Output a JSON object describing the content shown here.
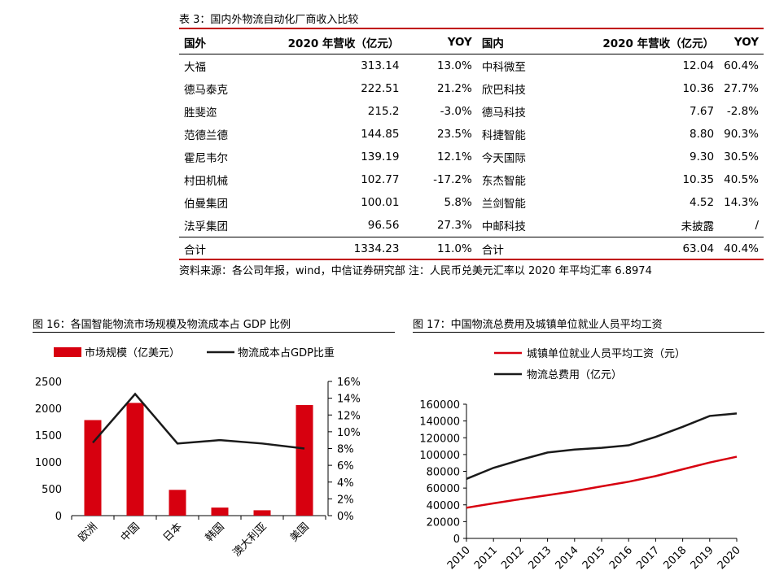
{
  "table3": {
    "caption": "表 3：国内外物流自动化厂商收入比较",
    "header": [
      "国外",
      "2020 年营收（亿元）",
      "YOY",
      "国内",
      "2020 年营收（亿元）",
      "YOY"
    ],
    "rows": [
      [
        "大福",
        "313.14",
        "13.0%",
        "中科微至",
        "12.04",
        "60.4%"
      ],
      [
        "德马泰克",
        "222.51",
        "21.2%",
        "欣巴科技",
        "10.36",
        "27.7%"
      ],
      [
        "胜斐迩",
        "215.2",
        "-3.0%",
        "德马科技",
        "7.67",
        "-2.8%"
      ],
      [
        "范德兰德",
        "144.85",
        "23.5%",
        "科捷智能",
        "8.80",
        "90.3%"
      ],
      [
        "霍尼韦尔",
        "139.19",
        "12.1%",
        "今天国际",
        "9.30",
        "30.5%"
      ],
      [
        "村田机械",
        "102.77",
        "-17.2%",
        "东杰智能",
        "10.35",
        "40.5%"
      ],
      [
        "伯曼集团",
        "100.01",
        "5.8%",
        "兰剑智能",
        "4.52",
        "14.3%"
      ],
      [
        "法孚集团",
        "96.56",
        "27.3%",
        "中邮科技",
        "未披露",
        "/"
      ]
    ],
    "total": [
      "合计",
      "1334.23",
      "11.0%",
      "合计",
      "63.04",
      "40.4%"
    ],
    "source": "资料来源：各公司年报，wind，中信证券研究部 注：人民币兑美元汇率以 2020 年平均汇率 6.8974"
  },
  "fig16": {
    "caption": "图 16：各国智能物流市场规模及物流成本占 GDP 比例"
  },
  "fig17": {
    "caption": "图 17：中国物流总费用及城镇单位就业人员平均工资"
  },
  "chart_data": [
    {
      "type": "bar",
      "categories": [
        "欧洲",
        "中国",
        "日本",
        "韩国",
        "澳大利亚",
        "美国"
      ],
      "series": [
        {
          "name": "市场规模（亿美元）",
          "type": "bar",
          "axis": "left",
          "color": "#d7000f",
          "values": [
            1780,
            2100,
            480,
            150,
            100,
            2060
          ]
        },
        {
          "name": "物流成本占GDP比重",
          "type": "line",
          "axis": "right",
          "color": "#1a1a1a",
          "values": [
            8.7,
            14.5,
            8.6,
            9.0,
            8.6,
            8.0
          ]
        }
      ],
      "ylim": [
        0,
        2500
      ],
      "yticks": [
        "0",
        "500",
        "1000",
        "1500",
        "2000",
        "2500"
      ],
      "y2lim": [
        0,
        16
      ],
      "y2ticks": [
        "0%",
        "2%",
        "4%",
        "6%",
        "8%",
        "10%",
        "12%",
        "14%",
        "16%"
      ],
      "legend": "top",
      "grid": false
    },
    {
      "type": "line",
      "x": [
        "2010",
        "2011",
        "2012",
        "2013",
        "2014",
        "2015",
        "2016",
        "2017",
        "2018",
        "2019",
        "2020"
      ],
      "series": [
        {
          "name": "城镇单位就业人员平均工资（元）",
          "color": "#d7000f",
          "values": [
            36539,
            41799,
            46769,
            51483,
            56360,
            62029,
            67569,
            74318,
            82413,
            90501,
            97379
          ]
        },
        {
          "name": "物流总费用（亿元）",
          "color": "#1a1a1a",
          "values": [
            70984,
            84102,
            93702,
            102396,
            105910,
            108000,
            111000,
            121000,
            133000,
            146000,
            149000
          ]
        }
      ],
      "ylim": [
        0,
        160000
      ],
      "yticks": [
        "0",
        "20000",
        "40000",
        "60000",
        "80000",
        "100000",
        "120000",
        "140000",
        "160000"
      ],
      "legend": "top-left",
      "grid": false
    }
  ]
}
